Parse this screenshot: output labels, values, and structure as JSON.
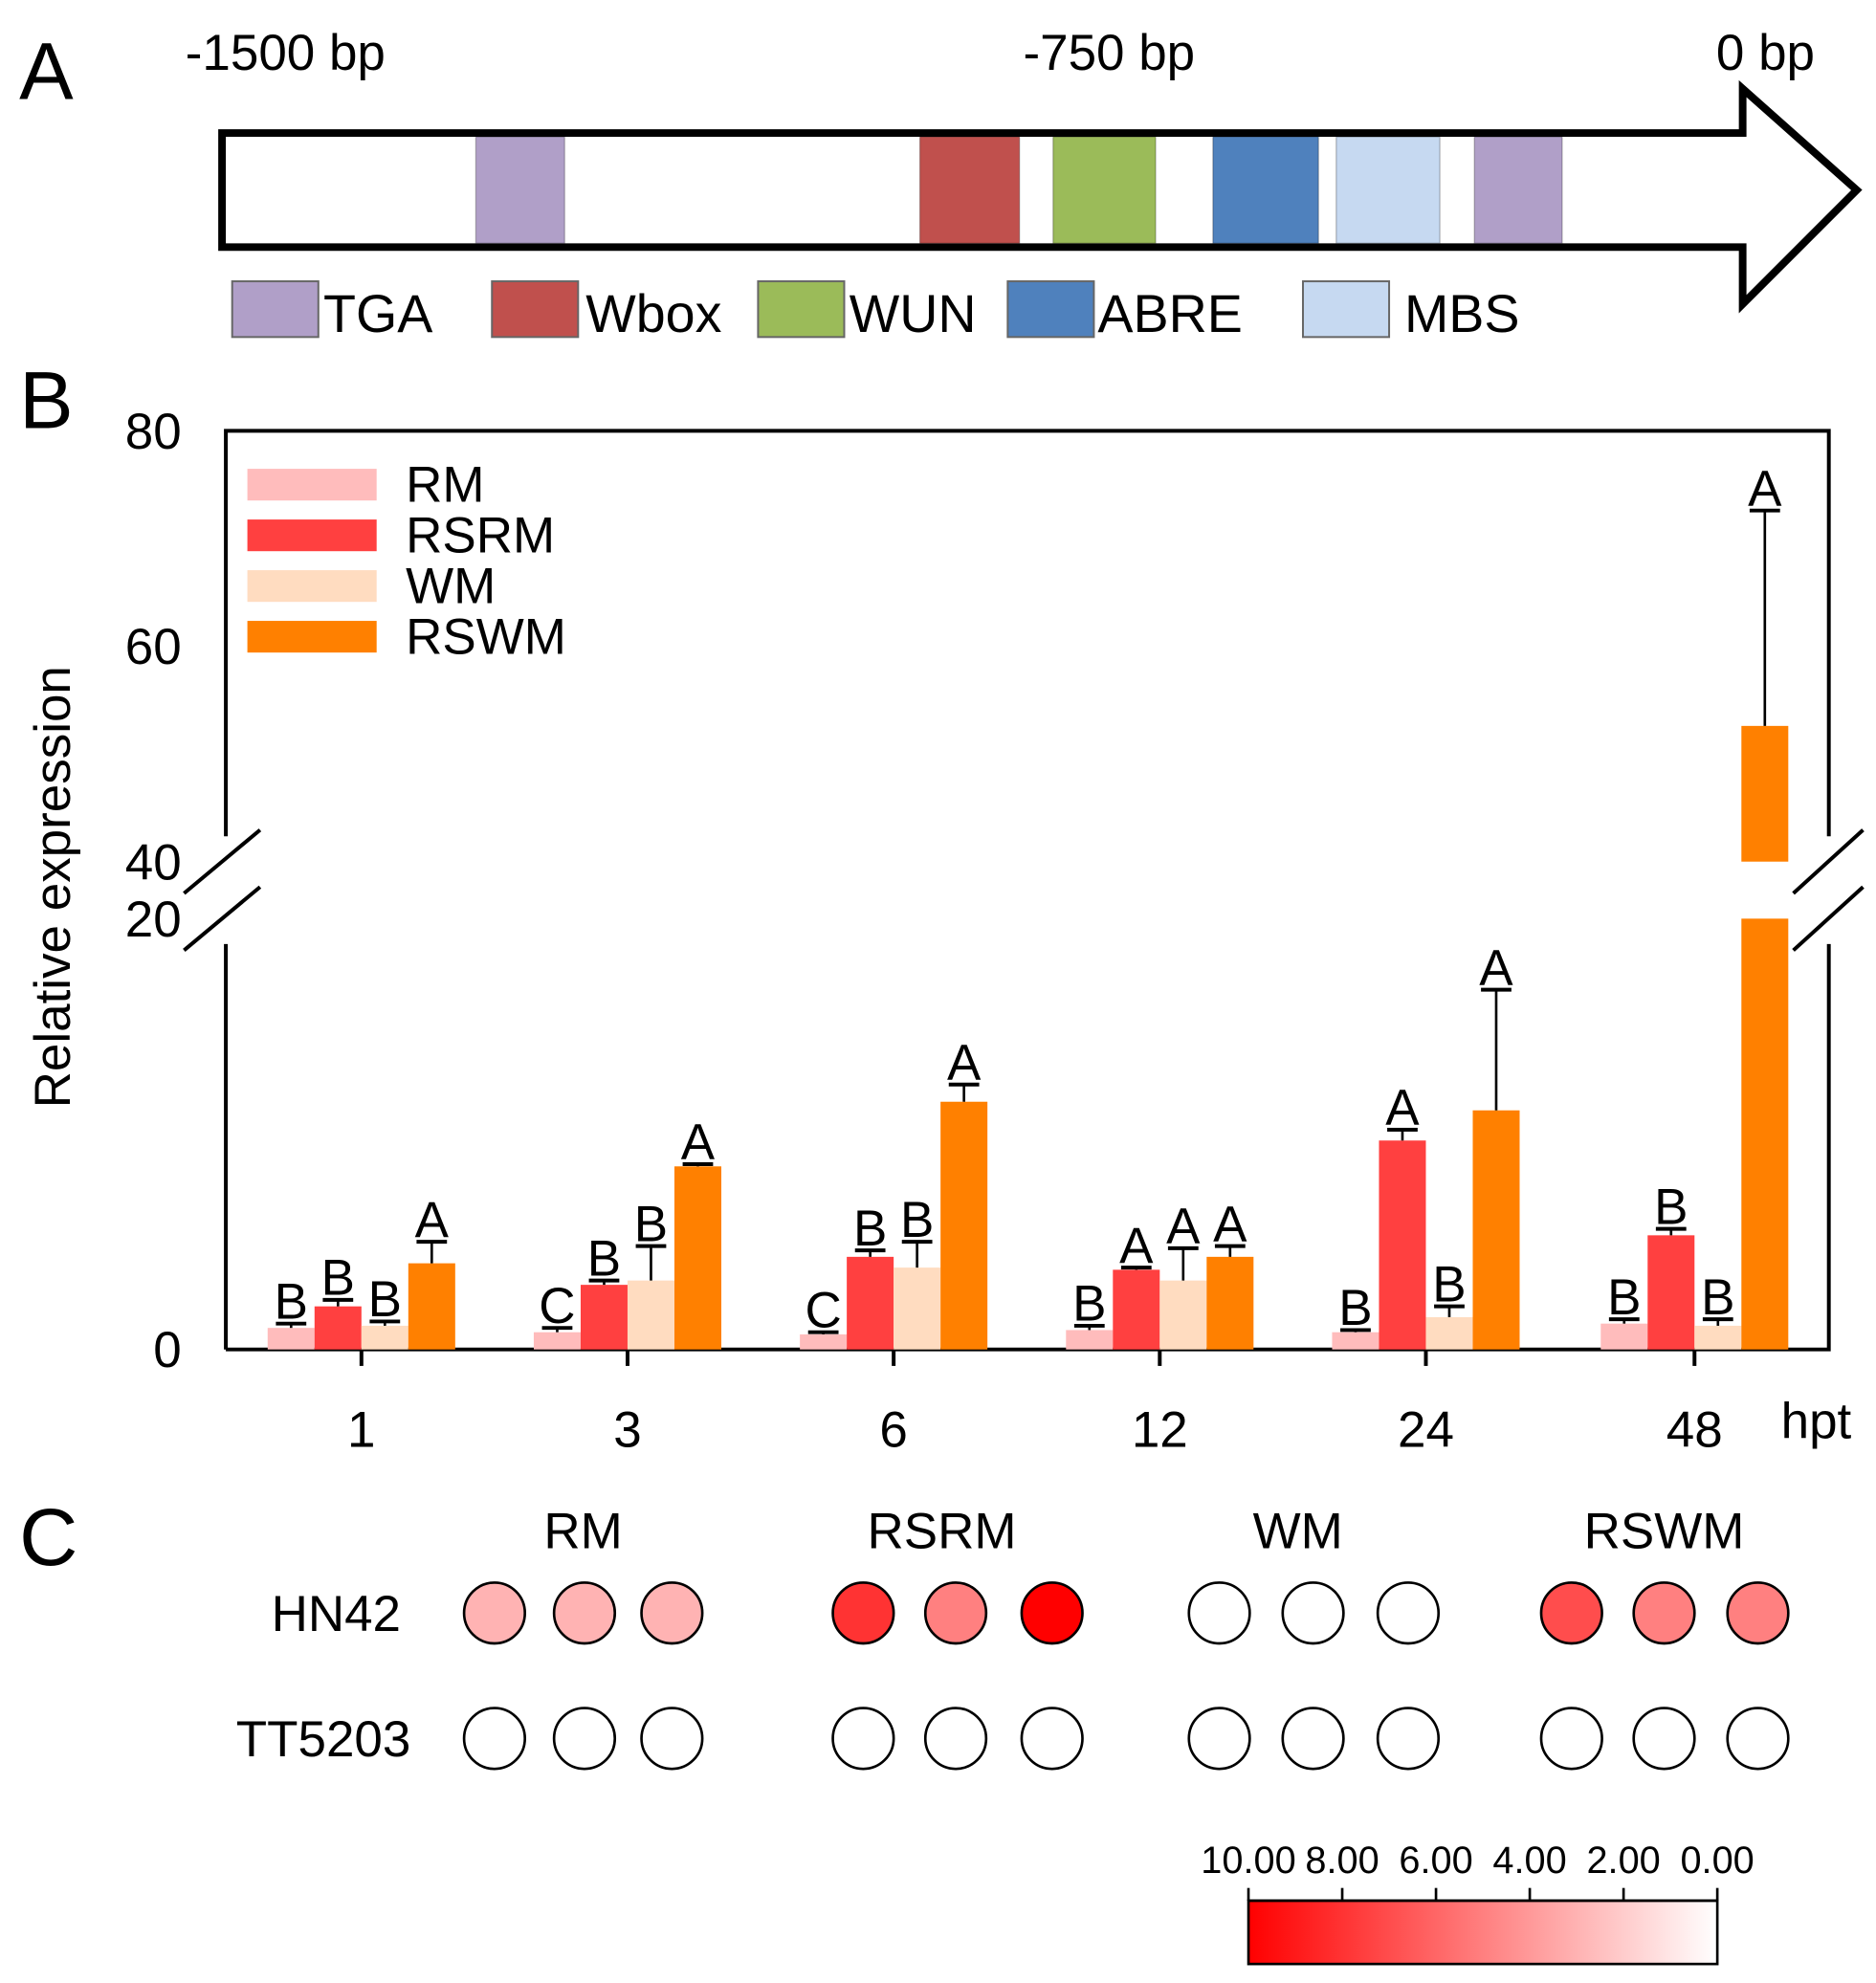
{
  "colors": {
    "RM": "#ffbcbc",
    "RSRM": "#ff4040",
    "WM": "#ffdcc0",
    "RSWM": "#ff8000",
    "TGA": "#b09fc8",
    "Wbox": "#c0504d",
    "WUN": "#9bbb59",
    "ABRE": "#4f81bd",
    "MBS": "#c6d9f1"
  },
  "panels": {
    "a": "A",
    "b": "B",
    "c": "C"
  },
  "promoter": {
    "ticks": [
      {
        "bp": -1500,
        "label": "-1500 bp"
      },
      {
        "bp": -750,
        "label": "-750 bp"
      },
      {
        "bp": 0,
        "label": "0 bp"
      }
    ],
    "elements": [
      {
        "type": "TGA",
        "start": -1307,
        "end": -1217
      },
      {
        "type": "Wbox",
        "start": -857,
        "end": -756
      },
      {
        "type": "WUN",
        "start": -722,
        "end": -618
      },
      {
        "type": "ABRE",
        "start": -560,
        "end": -453
      },
      {
        "type": "MBS",
        "start": -435,
        "end": -330
      },
      {
        "type": "TGA",
        "start": -295,
        "end": -206
      }
    ],
    "legend": [
      "TGA",
      "Wbox",
      "WUN",
      "ABRE",
      "MBS"
    ]
  },
  "chart_data": {
    "type": "bar",
    "ylabel": "Relative expression",
    "xunit": "hpt",
    "categories": [
      "1",
      "3",
      "6",
      "12",
      "24",
      "48"
    ],
    "y_ticks": [
      "0",
      "20",
      "40",
      "60",
      "80"
    ],
    "axis_break": [
      20,
      40
    ],
    "ylim": [
      0,
      80
    ],
    "legend_placement": "top-left",
    "series": [
      {
        "name": "RM",
        "values": [
          1.0,
          0.8,
          0.7,
          0.9,
          0.8,
          1.2
        ],
        "errors": [
          0.2,
          0.2,
          0.1,
          0.2,
          0.1,
          0.2
        ],
        "letters": [
          "B",
          "C",
          "C",
          "B",
          "B",
          "B"
        ]
      },
      {
        "name": "RSRM",
        "values": [
          2.0,
          3.0,
          4.3,
          3.7,
          9.7,
          5.3
        ],
        "errors": [
          0.3,
          0.2,
          0.3,
          0.1,
          0.5,
          0.3
        ],
        "letters": [
          "B",
          "B",
          "B",
          "A",
          "A",
          "B"
        ]
      },
      {
        "name": "WM",
        "values": [
          1.1,
          3.2,
          3.8,
          3.2,
          1.5,
          1.1
        ],
        "errors": [
          0.2,
          1.6,
          1.2,
          1.5,
          0.5,
          0.3
        ],
        "letters": [
          "B",
          "B",
          "B",
          "A",
          "B",
          "B"
        ]
      },
      {
        "name": "RSWM",
        "values": [
          4.0,
          8.5,
          11.5,
          4.3,
          11.1,
          52.6
        ],
        "errors": [
          1.0,
          0.1,
          0.8,
          0.5,
          5.6,
          20.0
        ],
        "letters": [
          "A",
          "A",
          "A",
          "A",
          "A",
          "A"
        ]
      }
    ]
  },
  "heatmap": {
    "groups": [
      "RM",
      "RSRM",
      "WM",
      "RSWM"
    ],
    "rows": [
      {
        "label": "HN42",
        "values": [
          [
            3,
            3,
            3
          ],
          [
            8,
            5,
            10
          ],
          [
            0,
            0,
            0
          ],
          [
            7,
            5,
            5
          ]
        ]
      },
      {
        "label": "TT5203",
        "values": [
          [
            0,
            0,
            0
          ],
          [
            0,
            0,
            0
          ],
          [
            0,
            0,
            0
          ],
          [
            0,
            0,
            0
          ]
        ]
      }
    ],
    "scale_labels": [
      "10.00",
      "8.00",
      "6.00",
      "4.00",
      "2.00",
      "0.00"
    ],
    "scale_range": [
      10,
      0
    ]
  }
}
